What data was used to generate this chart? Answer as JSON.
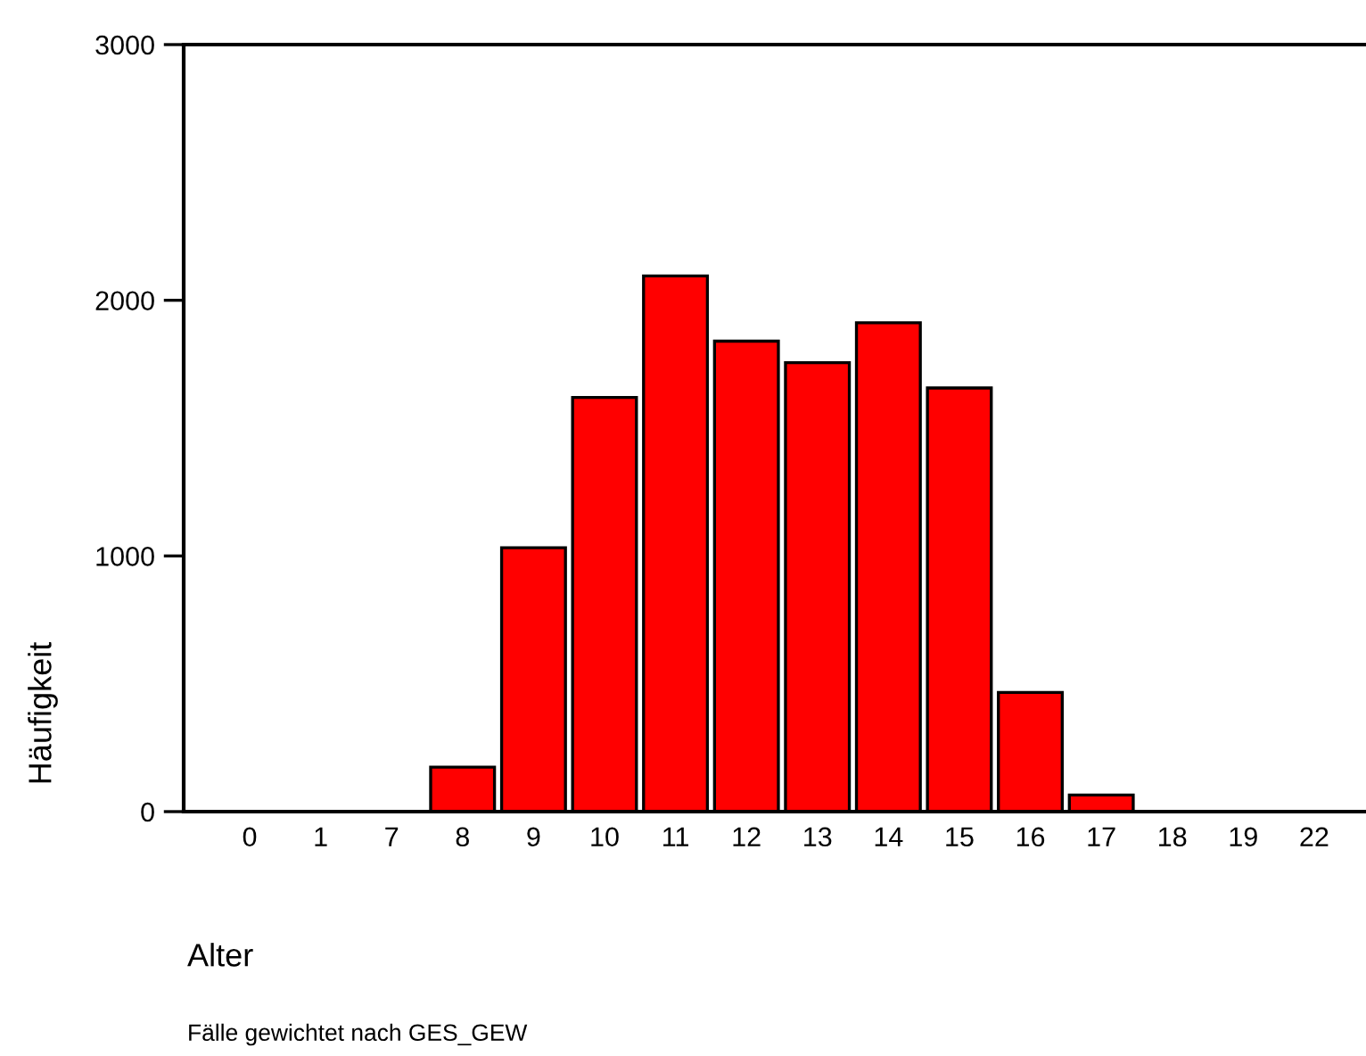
{
  "chart_data": {
    "type": "bar",
    "xlabel": "Alter",
    "ylabel": "Häufigkeit",
    "categories": [
      "0",
      "1",
      "7",
      "8",
      "9",
      "10",
      "11",
      "12",
      "13",
      "14",
      "15",
      "16",
      "17",
      "18",
      "19",
      "22"
    ],
    "values": [
      0,
      0,
      0,
      174,
      1032,
      1620,
      2095,
      1840,
      1756,
      1912,
      1657,
      466,
      65,
      0,
      0,
      0
    ],
    "color": "#ff0000",
    "ylim": [
      0,
      3000
    ],
    "yticks": [
      0,
      1000,
      2000,
      3000
    ],
    "grid": false,
    "legend": false,
    "annotations": [
      "Fälle gewichtet nach GES_GEW"
    ]
  }
}
